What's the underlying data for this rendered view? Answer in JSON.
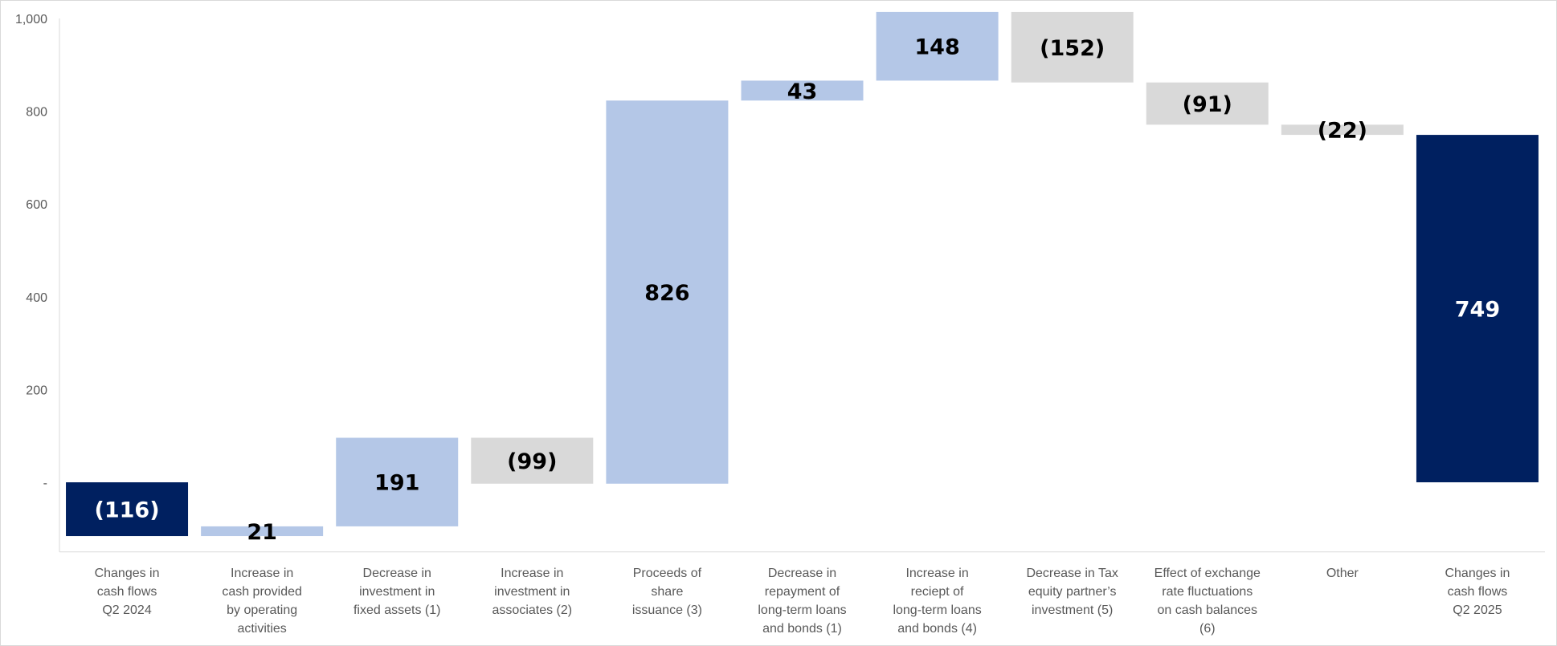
{
  "chart_data": {
    "type": "bar",
    "subtype": "waterfall",
    "title": "",
    "xlabel": "",
    "ylabel": "",
    "ylim": [
      -150,
      1000
    ],
    "y_ticks": [
      {
        "value": 0,
        "label": "-"
      },
      {
        "value": 200,
        "label": "200"
      },
      {
        "value": 400,
        "label": "400"
      },
      {
        "value": 600,
        "label": "600"
      },
      {
        "value": 800,
        "label": "800"
      },
      {
        "value": 1000,
        "label": "1,000"
      }
    ],
    "grid": false,
    "legend": "none",
    "colors": {
      "total": "#002060",
      "increase": "#b4c7e7",
      "decrease": "#d9d9d9",
      "label_dark": "#000000",
      "label_light": "#ffffff"
    },
    "bars": [
      {
        "category": [
          "Changes in",
          "cash flows",
          "Q2 2024"
        ],
        "value": -116,
        "kind": "total",
        "start": 0,
        "end": -116,
        "label": "(116)"
      },
      {
        "category": [
          "Increase in",
          "cash provided",
          "by operating",
          "activities"
        ],
        "value": 21,
        "kind": "increase",
        "start": -116,
        "end": -95,
        "label": "21"
      },
      {
        "category": [
          "Decrease in",
          "investment in",
          "fixed assets (1)"
        ],
        "value": 191,
        "kind": "increase",
        "start": -95,
        "end": 96,
        "label": "191"
      },
      {
        "category": [
          "Increase in",
          "investment in",
          "associates (2)"
        ],
        "value": -99,
        "kind": "decrease",
        "start": 96,
        "end": -3,
        "label": "(99)"
      },
      {
        "category": [
          "Proceeds of",
          "share",
          "issuance (3)"
        ],
        "value": 826,
        "kind": "increase",
        "start": -3,
        "end": 823,
        "label": "826"
      },
      {
        "category": [
          "Decrease in",
          "repayment of",
          "long-term loans",
          "and bonds (1)"
        ],
        "value": 43,
        "kind": "increase",
        "start": 823,
        "end": 866,
        "label": "43"
      },
      {
        "category": [
          "Increase in",
          "reciept of",
          "long-term loans",
          "and bonds (4)"
        ],
        "value": 148,
        "kind": "increase",
        "start": 866,
        "end": 1014,
        "label": "148"
      },
      {
        "category": [
          "Decrease in Tax",
          "equity partner’s",
          "investment (5)"
        ],
        "value": -152,
        "kind": "decrease",
        "start": 1014,
        "end": 862,
        "label": "(152)"
      },
      {
        "category": [
          "Effect of exchange",
          "rate fluctuations",
          "on cash balances",
          "(6)"
        ],
        "value": -91,
        "kind": "decrease",
        "start": 862,
        "end": 771,
        "label": "(91)"
      },
      {
        "category": [
          "Other"
        ],
        "value": -22,
        "kind": "decrease",
        "start": 771,
        "end": 749,
        "label": "(22)"
      },
      {
        "category": [
          "Changes in",
          "cash flows",
          "Q2 2025"
        ],
        "value": 749,
        "kind": "total",
        "start": 0,
        "end": 749,
        "label": "749"
      }
    ]
  }
}
